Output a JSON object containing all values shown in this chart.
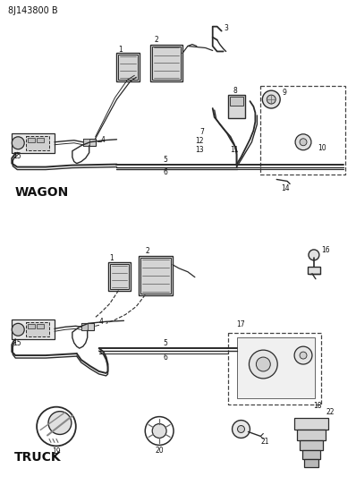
{
  "title": "8J143800 B",
  "bg_color": "#ffffff",
  "line_color": "#2a2a2a",
  "text_color": "#111111",
  "figsize": [
    3.98,
    5.33
  ],
  "dpi": 100,
  "wagon_label": "WAGON",
  "truck_label": "TRUCK"
}
